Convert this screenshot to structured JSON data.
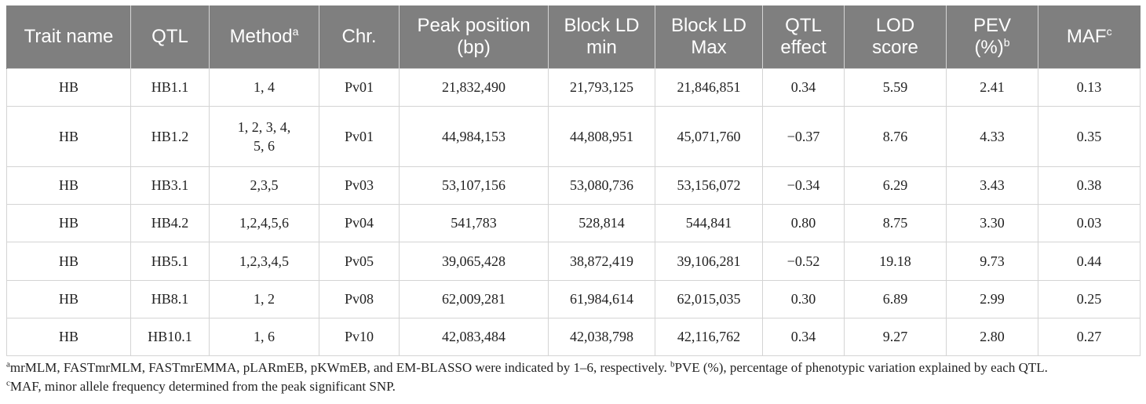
{
  "table": {
    "headers": {
      "trait": "Trait name",
      "qtl": "QTL",
      "method": "Method",
      "method_sup": "a",
      "chr": "Chr.",
      "peak_1": "Peak position",
      "peak_2": "(bp)",
      "ldmin_1": "Block LD",
      "ldmin_2": "min",
      "ldmax_1": "Block LD",
      "ldmax_2": "Max",
      "effect_1": "QTL",
      "effect_2": "effect",
      "lod_1": "LOD",
      "lod_2": "score",
      "pev_1": "PEV",
      "pev_2": "(%)",
      "pev_sup": "b",
      "maf": "MAF",
      "maf_sup": "c"
    },
    "rows": [
      {
        "trait": "HB",
        "qtl": "HB1.1",
        "method": "1, 4",
        "chr": "Pv01",
        "peak": "21,832,490",
        "ld_min": "21,793,125",
        "ld_max": "21,846,851",
        "effect": "0.34",
        "lod": "5.59",
        "pev": "2.41",
        "maf": "0.13"
      },
      {
        "trait": "HB",
        "qtl": "HB1.2",
        "method_1": "1, 2, 3, 4,",
        "method_2": "5, 6",
        "chr": "Pv01",
        "peak": "44,984,153",
        "ld_min": "44,808,951",
        "ld_max": "45,071,760",
        "effect": "−0.37",
        "lod": "8.76",
        "pev": "4.33",
        "maf": "0.35"
      },
      {
        "trait": "HB",
        "qtl": "HB3.1",
        "method": "2,3,5",
        "chr": "Pv03",
        "peak": "53,107,156",
        "ld_min": "53,080,736",
        "ld_max": "53,156,072",
        "effect": "−0.34",
        "lod": "6.29",
        "pev": "3.43",
        "maf": "0.38"
      },
      {
        "trait": "HB",
        "qtl": "HB4.2",
        "method": "1,2,4,5,6",
        "chr": "Pv04",
        "peak": "541,783",
        "ld_min": "528,814",
        "ld_max": "544,841",
        "effect": "0.80",
        "lod": "8.75",
        "pev": "3.30",
        "maf": "0.03"
      },
      {
        "trait": "HB",
        "qtl": "HB5.1",
        "method": "1,2,3,4,5",
        "chr": "Pv05",
        "peak": "39,065,428",
        "ld_min": "38,872,419",
        "ld_max": "39,106,281",
        "effect": "−0.52",
        "lod": "19.18",
        "pev": "9.73",
        "maf": "0.44"
      },
      {
        "trait": "HB",
        "qtl": "HB8.1",
        "method": "1, 2",
        "chr": "Pv08",
        "peak": "62,009,281",
        "ld_min": "61,984,614",
        "ld_max": "62,015,035",
        "effect": "0.30",
        "lod": "6.89",
        "pev": "2.99",
        "maf": "0.25"
      },
      {
        "trait": "HB",
        "qtl": "HB10.1",
        "method": "1, 6",
        "chr": "Pv10",
        "peak": "42,083,484",
        "ld_min": "42,038,798",
        "ld_max": "42,116,762",
        "effect": "0.34",
        "lod": "9.27",
        "pev": "2.80",
        "maf": "0.27"
      }
    ]
  },
  "footnotes": {
    "a_mark": "a",
    "a_text": "mrMLM, FASTmrMLM, FASTmrEMMA, pLARmEB, pKWmEB, and EM-BLASSO were indicated by 1–6, respectively. ",
    "b_mark": "b",
    "b_text": "PVE (%), percentage of phenotypic variation explained by each QTL.",
    "c_mark": "c",
    "c_text": "MAF, minor allele frequency determined from the peak significant SNP."
  },
  "colors": {
    "header_bg": "#7f7f7f",
    "header_text": "#ffffff",
    "grid": "#d4d4d4",
    "body_text": "#222222"
  }
}
